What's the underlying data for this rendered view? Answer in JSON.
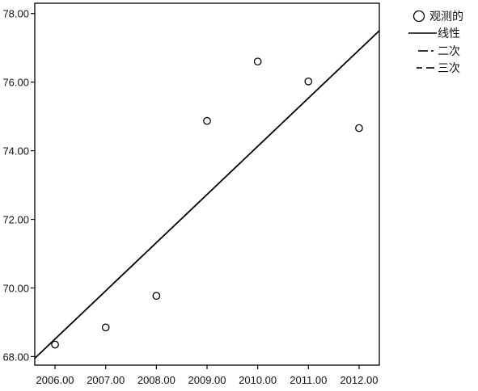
{
  "chart_data": {
    "type": "scatter",
    "xlim": [
      2005.6,
      2012.4
    ],
    "ylim": [
      67.75,
      78.3
    ],
    "x_ticks": [
      2006,
      2007,
      2008,
      2009,
      2010,
      2011,
      2012
    ],
    "x_tick_labels": [
      "2006.00",
      "2007.00",
      "2008.00",
      "2009.00",
      "2010.00",
      "2011.00",
      "2012.00"
    ],
    "y_ticks": [
      68,
      70,
      72,
      74,
      76,
      78
    ],
    "y_tick_labels": [
      "68.00",
      "70.00",
      "72.00",
      "74.00",
      "76.00",
      "78.00"
    ],
    "grid": false,
    "legend_position": "top-right, outside plot",
    "series": [
      {
        "name": "观测的",
        "kind": "points",
        "marker": "open-circle",
        "x": [
          2006,
          2007,
          2008,
          2009,
          2010,
          2011,
          2012
        ],
        "y": [
          68.35,
          68.85,
          69.77,
          74.87,
          76.6,
          76.02,
          74.66
        ]
      },
      {
        "name": "线性",
        "kind": "line",
        "line_style": "solid",
        "x": [
          2005.6,
          2012.4
        ],
        "y": [
          67.95,
          77.5
        ]
      },
      {
        "name": "二次",
        "kind": "line",
        "line_style": "dash-dot"
      },
      {
        "name": "三次",
        "kind": "line",
        "line_style": "dashed"
      }
    ]
  }
}
